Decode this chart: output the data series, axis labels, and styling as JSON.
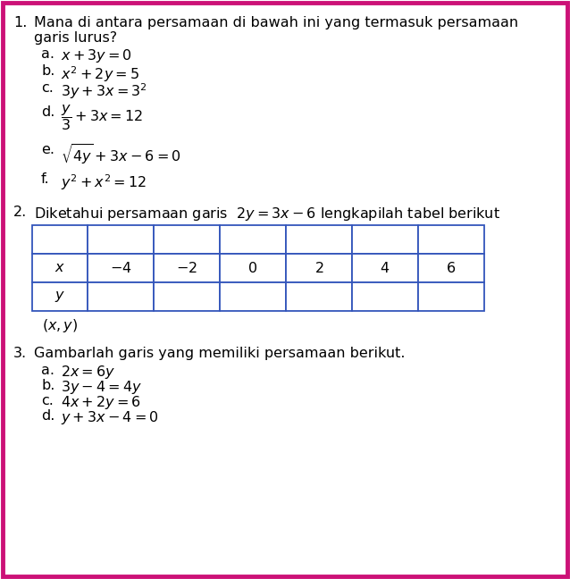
{
  "bg_color": "#ffffff",
  "border_color": "#cc1177",
  "text_color": "#000000",
  "q1_number": "1.",
  "q1_line1": "Mana di antara persamaan di bawah ini yang termasuk persamaan",
  "q1_line2": "garis lurus?",
  "q1_items": [
    {
      "label": "a.",
      "text": "$x + 3y = 0$",
      "extra_space": false
    },
    {
      "label": "b.",
      "text": "$x^2 + 2y = 5$",
      "extra_space": false
    },
    {
      "label": "c.",
      "text": "$3y + 3x = 3^2$",
      "extra_space": true
    },
    {
      "label": "d.",
      "text": "$\\dfrac{y}{3} + 3x = 12$",
      "extra_space": true
    },
    {
      "label": "e.",
      "text": "$\\sqrt{4y} + 3x - 6 = 0$",
      "extra_space": true
    },
    {
      "label": "f.",
      "text": "$y^2 + x^2 = 12$",
      "extra_space": false
    }
  ],
  "q2_number": "2.",
  "q2_text": "Diketahui persamaan garis  $2y = 3x - 6$ lengkapilah tabel berikut",
  "table_header": [
    "$x$",
    "$-4$",
    "$-2$",
    "$0$",
    "$2$",
    "$4$",
    "$6$"
  ],
  "table_row1_label": "$y$",
  "table_row2_label": "$(x, y)$",
  "q3_number": "3.",
  "q3_text": "Gambarlah garis yang memiliki persamaan berikut.",
  "q3_items": [
    {
      "label": "a.",
      "text": "$2x = 6y$"
    },
    {
      "label": "b.",
      "text": "$3y - 4 = 4y$"
    },
    {
      "label": "c.",
      "text": "$4x + 2y = 6$"
    },
    {
      "label": "d.",
      "text": "$y + 3x - 4 = 0$"
    }
  ],
  "table_border_color": "#3355bb",
  "font_size": 11.5
}
